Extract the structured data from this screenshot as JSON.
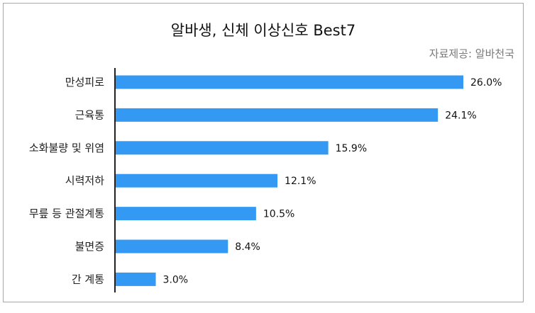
{
  "chart_data": {
    "type": "bar",
    "orientation": "horizontal",
    "title": "알바생, 신체 이상신호 Best7",
    "source": "자료제공: 알바천국",
    "categories": [
      "만성피로",
      "근육통",
      "소화불량 및 위염",
      "시력저하",
      "무릎 등 관절계통",
      "불면증",
      "간 계통"
    ],
    "values": [
      26.0,
      24.1,
      15.9,
      12.1,
      10.5,
      8.4,
      3.0
    ],
    "value_labels": [
      "26.0%",
      "24.1%",
      "15.9%",
      "12.1%",
      "10.5%",
      "8.4%",
      "3.0%"
    ],
    "xlim": [
      0,
      26.0
    ],
    "grid": false,
    "bar_color": "#3399f3"
  }
}
